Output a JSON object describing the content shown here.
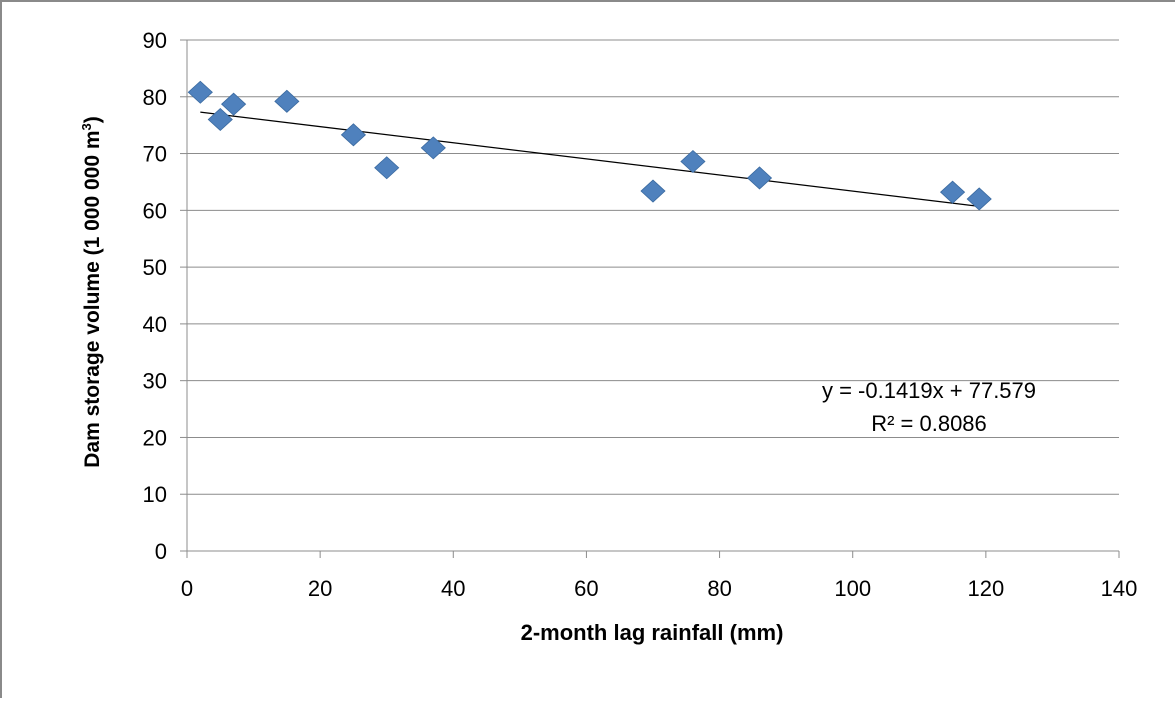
{
  "chart_data": {
    "type": "scatter",
    "xlabel": "2-month lag rainfall (mm)",
    "ylabel_main": "Dam storage volume (1 000 000 m",
    "ylabel_sup": "3",
    "ylabel_end": ")",
    "xlim": [
      0,
      140
    ],
    "ylim": [
      0,
      90
    ],
    "xticks": [
      0,
      20,
      40,
      60,
      80,
      100,
      120,
      140
    ],
    "yticks": [
      0,
      10,
      20,
      30,
      40,
      50,
      60,
      70,
      80,
      90
    ],
    "grid": "horizontal",
    "marker": "diamond",
    "marker_color": "#4f81bd",
    "trendline_color": "#000000",
    "points": [
      {
        "x": 2,
        "y": 80.8
      },
      {
        "x": 5,
        "y": 76
      },
      {
        "x": 7,
        "y": 78.7
      },
      {
        "x": 15,
        "y": 79.2
      },
      {
        "x": 25,
        "y": 73.3
      },
      {
        "x": 30,
        "y": 67.5
      },
      {
        "x": 37,
        "y": 71
      },
      {
        "x": 70,
        "y": 63.4
      },
      {
        "x": 76,
        "y": 68.6
      },
      {
        "x": 86,
        "y": 65.7
      },
      {
        "x": 115,
        "y": 63.2
      },
      {
        "x": 119,
        "y": 62
      }
    ],
    "trendline": {
      "slope": -0.1419,
      "intercept": 77.579,
      "x_start": 2,
      "x_end": 119
    },
    "equation": "y = -0.1419x + 77.579",
    "r_squared": "R² = 0.8086"
  }
}
